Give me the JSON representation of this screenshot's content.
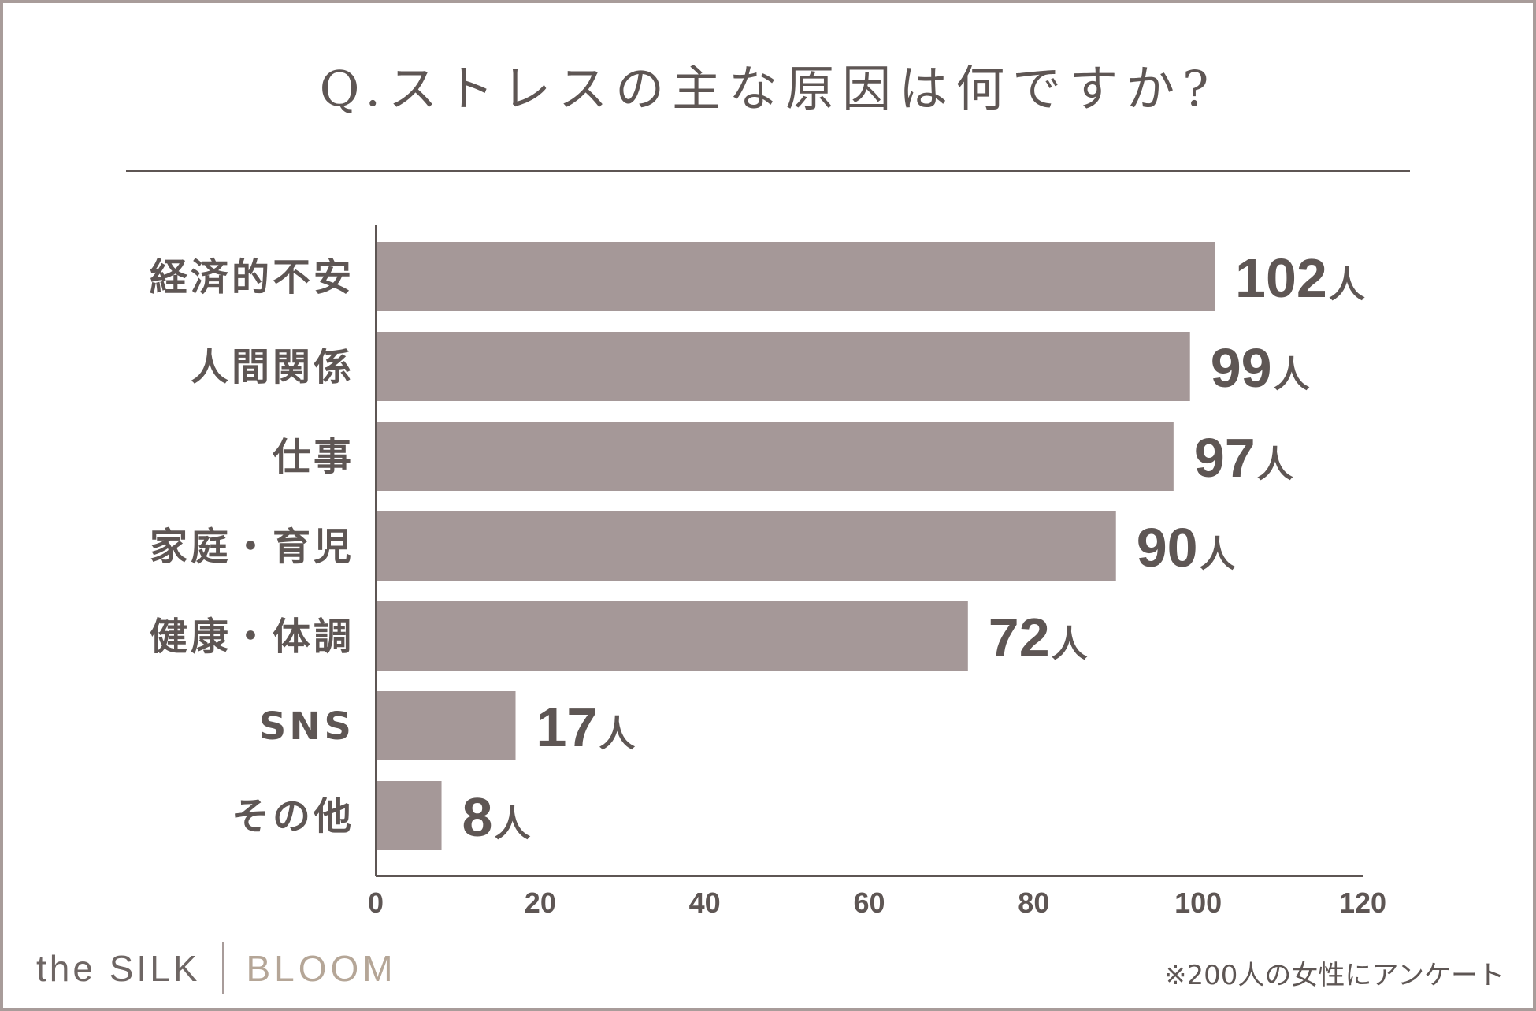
{
  "title": "Q.ストレスの主な原因は何ですか?",
  "chart_data": {
    "type": "bar",
    "orientation": "horizontal",
    "title": "Q.ストレスの主な原因は何ですか?",
    "categories": [
      "経済的不安",
      "人間関係",
      "仕事",
      "家庭・育児",
      "健康・体調",
      "SNS",
      "その他"
    ],
    "values": [
      102,
      99,
      97,
      90,
      72,
      17,
      8
    ],
    "value_labels": [
      "102人",
      "99人",
      "97人",
      "90人",
      "72人",
      "17人",
      "8人"
    ],
    "value_number_labels": [
      "102",
      "99",
      "97",
      "90",
      "72",
      "17",
      "8"
    ],
    "unit": "人",
    "xlim": [
      0,
      120
    ],
    "x_ticks": [
      "0",
      "20",
      "40",
      "60",
      "80",
      "100",
      "120"
    ],
    "xlabel": "",
    "ylabel": "",
    "grid": false,
    "bar_color": "#a59898"
  },
  "footer": {
    "brand_left": "the SILK",
    "brand_right": "BLOOM",
    "note": "※200人の女性にアンケート"
  },
  "colors": {
    "text": "#5e5654",
    "border": "#a89c9a",
    "bar": "#a59898",
    "brand_accent": "#b5a697"
  }
}
